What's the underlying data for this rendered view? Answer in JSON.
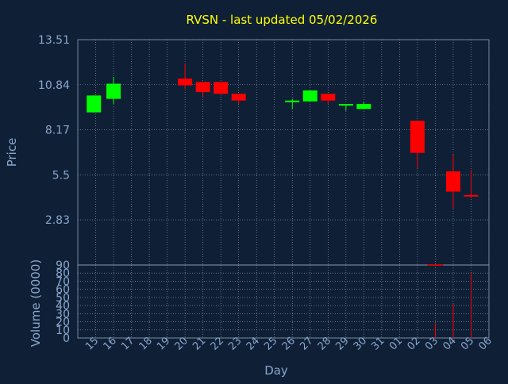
{
  "chart_data": {
    "type": "candlestick",
    "title": "RVSN - last updated 05/02/2026",
    "price_axis": {
      "label": "Price",
      "ticks": [
        "13.51",
        "10.84",
        "8.17",
        "5.5",
        "2.83"
      ],
      "tick_values": [
        13.51,
        10.84,
        8.17,
        5.5,
        2.83
      ],
      "range": [
        0.15,
        13.51
      ]
    },
    "volume_axis": {
      "label": "Volume (0000)",
      "ticks": [
        "90",
        "80",
        "70",
        "60",
        "50",
        "40",
        "30",
        "20",
        "10",
        "0"
      ],
      "tick_values": [
        90,
        80,
        70,
        60,
        50,
        40,
        30,
        20,
        10,
        0
      ],
      "range": [
        0,
        90
      ]
    },
    "x_axis": {
      "label": "Day",
      "ticks": [
        "15",
        "16",
        "17",
        "18",
        "19",
        "20",
        "21",
        "22",
        "23",
        "24",
        "25",
        "26",
        "27",
        "28",
        "29",
        "30",
        "31",
        "01",
        "02",
        "03",
        "04",
        "05",
        "06"
      ]
    },
    "grid": true,
    "candles": [
      {
        "x": 14.9,
        "open": 9.2,
        "close": 10.2,
        "high": 10.2,
        "low": 9.2
      },
      {
        "x": 16.0,
        "open": 10.0,
        "close": 10.9,
        "high": 11.3,
        "low": 9.7
      },
      {
        "x": 20.0,
        "open": 11.2,
        "close": 10.8,
        "high": 12.1,
        "low": 10.6
      },
      {
        "x": 21.0,
        "open": 11.0,
        "close": 10.4,
        "high": 11.0,
        "low": 10.1
      },
      {
        "x": 22.0,
        "open": 11.0,
        "close": 10.3,
        "high": 11.0,
        "low": 10.3
      },
      {
        "x": 23.0,
        "open": 10.3,
        "close": 9.9,
        "high": 10.3,
        "low": 9.7
      },
      {
        "x": 26.0,
        "open": 9.8,
        "close": 9.9,
        "high": 10.0,
        "low": 9.4
      },
      {
        "x": 27.0,
        "open": 9.85,
        "close": 10.5,
        "high": 10.5,
        "low": 9.85
      },
      {
        "x": 28.0,
        "open": 10.3,
        "close": 9.9,
        "high": 10.3,
        "low": 9.7
      },
      {
        "x": 29.0,
        "open": 9.6,
        "close": 9.7,
        "high": 9.7,
        "low": 9.3
      },
      {
        "x": 30.0,
        "open": 9.4,
        "close": 9.7,
        "high": 9.8,
        "low": 9.4
      },
      {
        "x": 33.0,
        "open": 8.7,
        "close": 6.8,
        "high": 8.7,
        "low": 5.9
      },
      {
        "x": 35.0,
        "open": 5.7,
        "close": 4.5,
        "high": 6.7,
        "low": 3.5
      },
      {
        "x": 36.0,
        "open": 4.3,
        "close": 4.25,
        "high": 5.8,
        "low": 4.1
      }
    ],
    "volume": [
      {
        "x": 34.0,
        "value": 90
      },
      {
        "x": 34.0,
        "value": 18
      },
      {
        "x": 35.0,
        "value": 42
      },
      {
        "x": 36.0,
        "value": 80
      }
    ],
    "colors": {
      "background": "#0f2036",
      "grid": "#8aa0b8",
      "axis_text": "#8aa6cc",
      "title": "#ffff00",
      "up": "#00ff00",
      "down": "#ff0000",
      "volume": "#ff0000"
    }
  }
}
